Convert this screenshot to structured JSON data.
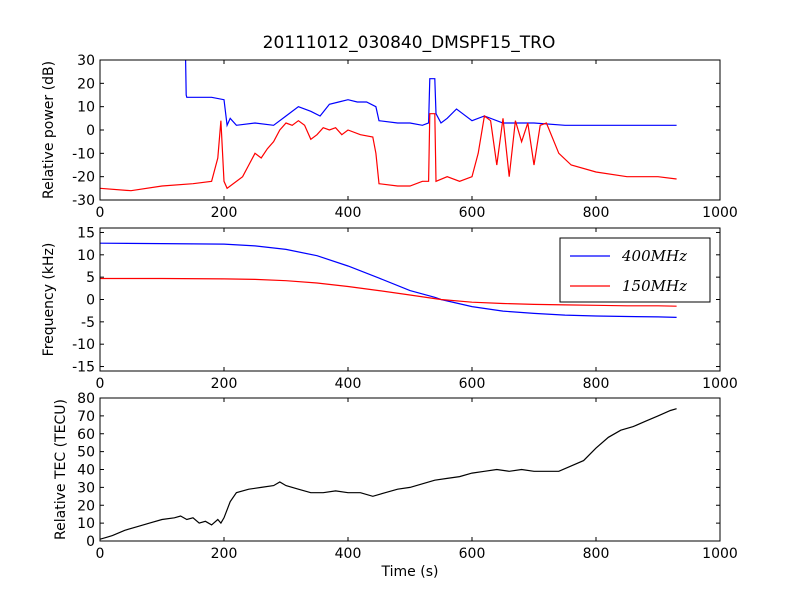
{
  "figure": {
    "title": "20111012_030840_DMSPF15_TRO"
  },
  "colors": {
    "blue": "#0000ff",
    "red": "#ff0000",
    "black": "#000000"
  },
  "chart_data": [
    {
      "type": "line",
      "ylabel": "Relative power (dB)",
      "xlabel": "",
      "xlim": [
        0,
        1000
      ],
      "ylim": [
        -30,
        30
      ],
      "xticks": [
        "0",
        "200",
        "400",
        "600",
        "800",
        "1000"
      ],
      "yticks": [
        "-30",
        "-20",
        "-10",
        "0",
        "10",
        "20",
        "30"
      ],
      "grid": false,
      "series": [
        {
          "color": "blue",
          "x": [
            138,
            139,
            140,
            160,
            180,
            200,
            205,
            210,
            220,
            250,
            280,
            300,
            320,
            340,
            355,
            370,
            385,
            400,
            415,
            430,
            445,
            450,
            480,
            500,
            520,
            530,
            532,
            540,
            542,
            550,
            560,
            575,
            585,
            600,
            620,
            650,
            700,
            750,
            800,
            850,
            900,
            930
          ],
          "y": [
            30,
            15,
            14,
            14,
            14,
            13,
            2,
            5,
            2,
            3,
            2,
            6,
            10,
            8,
            6,
            11,
            12,
            13,
            12,
            12,
            10,
            4,
            3,
            3,
            2,
            3,
            22,
            22,
            7,
            3,
            5,
            9,
            7,
            4,
            6,
            3,
            3,
            2,
            2,
            2,
            2,
            2
          ]
        },
        {
          "color": "red",
          "x": [
            0,
            50,
            100,
            150,
            180,
            190,
            195,
            200,
            205,
            210,
            230,
            240,
            250,
            260,
            270,
            280,
            290,
            300,
            310,
            320,
            330,
            340,
            350,
            360,
            370,
            380,
            390,
            400,
            420,
            440,
            445,
            450,
            480,
            500,
            520,
            530,
            532,
            540,
            542,
            560,
            580,
            600,
            610,
            620,
            630,
            640,
            650,
            660,
            670,
            680,
            690,
            700,
            710,
            720,
            740,
            760,
            800,
            850,
            900,
            930
          ],
          "y": [
            -25,
            -26,
            -24,
            -23,
            -22,
            -12,
            4,
            -22,
            -25,
            -24,
            -20,
            -15,
            -10,
            -12,
            -8,
            -5,
            0,
            3,
            2,
            4,
            2,
            -4,
            -2,
            1,
            0,
            1,
            -2,
            0,
            -2,
            -3,
            -10,
            -23,
            -24,
            -24,
            -22,
            -22,
            7,
            7,
            -22,
            -20,
            -22,
            -20,
            -10,
            6,
            4,
            -15,
            5,
            -20,
            4,
            -5,
            3,
            -15,
            2,
            3,
            -10,
            -15,
            -18,
            -20,
            -20,
            -21
          ]
        }
      ]
    },
    {
      "type": "line",
      "ylabel": "Frequency (kHz)",
      "xlabel": "",
      "xlim": [
        0,
        1000
      ],
      "ylim": [
        -16,
        16
      ],
      "xticks": [
        "0",
        "200",
        "400",
        "600",
        "800",
        "1000"
      ],
      "yticks": [
        "-15",
        "-10",
        "-5",
        "0",
        "5",
        "10",
        "15"
      ],
      "grid": false,
      "legend": "top-right",
      "series": [
        {
          "name": "400MHz",
          "color": "blue",
          "x": [
            0,
            100,
            200,
            250,
            300,
            350,
            400,
            450,
            500,
            540,
            550,
            600,
            650,
            700,
            750,
            800,
            850,
            900,
            930
          ],
          "y": [
            12.6,
            12.5,
            12.4,
            12.0,
            11.2,
            9.8,
            7.5,
            4.8,
            2.0,
            0.5,
            0.0,
            -1.6,
            -2.6,
            -3.1,
            -3.5,
            -3.7,
            -3.8,
            -3.9,
            -4.0
          ]
        },
        {
          "name": "150MHz",
          "color": "red",
          "x": [
            0,
            100,
            200,
            250,
            300,
            350,
            400,
            450,
            500,
            540,
            550,
            600,
            650,
            700,
            750,
            800,
            850,
            900,
            930
          ],
          "y": [
            4.7,
            4.7,
            4.6,
            4.5,
            4.2,
            3.7,
            2.9,
            2.0,
            1.0,
            0.2,
            0.0,
            -0.6,
            -0.9,
            -1.1,
            -1.2,
            -1.3,
            -1.4,
            -1.4,
            -1.5
          ]
        }
      ]
    },
    {
      "type": "line",
      "ylabel": "Relative TEC (TECU)",
      "xlabel": "Time (s)",
      "xlim": [
        0,
        1000
      ],
      "ylim": [
        0,
        80
      ],
      "xticks": [
        "0",
        "200",
        "400",
        "600",
        "800",
        "1000"
      ],
      "yticks": [
        "0",
        "10",
        "20",
        "30",
        "40",
        "50",
        "60",
        "70",
        "80"
      ],
      "grid": false,
      "series": [
        {
          "color": "black",
          "x": [
            0,
            10,
            20,
            40,
            60,
            80,
            100,
            120,
            130,
            140,
            150,
            160,
            170,
            180,
            190,
            195,
            200,
            210,
            220,
            240,
            260,
            280,
            290,
            300,
            320,
            340,
            360,
            380,
            400,
            420,
            440,
            460,
            480,
            500,
            520,
            540,
            560,
            580,
            600,
            620,
            640,
            660,
            680,
            700,
            720,
            740,
            760,
            780,
            800,
            820,
            840,
            860,
            880,
            900,
            920,
            930
          ],
          "y": [
            1,
            2,
            3,
            6,
            8,
            10,
            12,
            13,
            14,
            12,
            13,
            10,
            11,
            9,
            12,
            10,
            13,
            22,
            27,
            29,
            30,
            31,
            33,
            31,
            29,
            27,
            27,
            28,
            27,
            27,
            25,
            27,
            29,
            30,
            32,
            34,
            35,
            36,
            38,
            39,
            40,
            39,
            40,
            39,
            39,
            39,
            42,
            45,
            52,
            58,
            62,
            64,
            67,
            70,
            73,
            74
          ]
        }
      ]
    }
  ]
}
